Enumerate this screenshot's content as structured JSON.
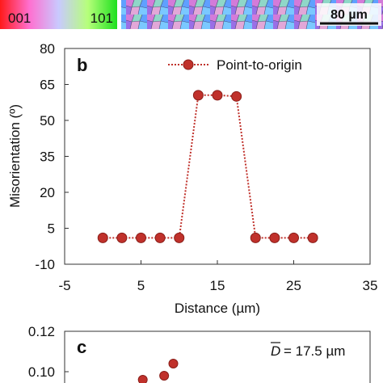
{
  "top_strip": {
    "ipf_key_label_left": "001",
    "ipf_key_label_right": "101",
    "scale_bar_label": "80 µm"
  },
  "chart_data": [
    {
      "panel_label": "b",
      "type": "line",
      "xlabel": "Distance (µm)",
      "ylabel": "Misorientation (º)",
      "xlim": [
        -5,
        35
      ],
      "ylim": [
        -10,
        80
      ],
      "xticks": [
        -5,
        5,
        15,
        25,
        35
      ],
      "yticks": [
        -10,
        5,
        20,
        35,
        50,
        65,
        80
      ],
      "grid": false,
      "legend_position": "top-right",
      "series": [
        {
          "name": "Point-to-origin",
          "color": "#c0312b",
          "x": [
            0,
            2.5,
            5,
            7.5,
            10,
            12.5,
            15,
            17.5,
            20,
            22.5,
            25,
            27.5
          ],
          "y": [
            1,
            1,
            1,
            1,
            1,
            60.5,
            60.5,
            60,
            1,
            1,
            1,
            1
          ]
        }
      ]
    },
    {
      "panel_label": "c",
      "type": "scatter",
      "annotation": "= 17.5 µm",
      "annotation_symbol": "D",
      "yticks": [
        0.12,
        0.1
      ],
      "ylim_visible": [
        0.095,
        0.12
      ],
      "series": [
        {
          "color": "#c0312b",
          "x": [
            25,
            22,
            15
          ],
          "y": [
            0.104,
            0.098,
            0.096
          ]
        }
      ]
    }
  ]
}
